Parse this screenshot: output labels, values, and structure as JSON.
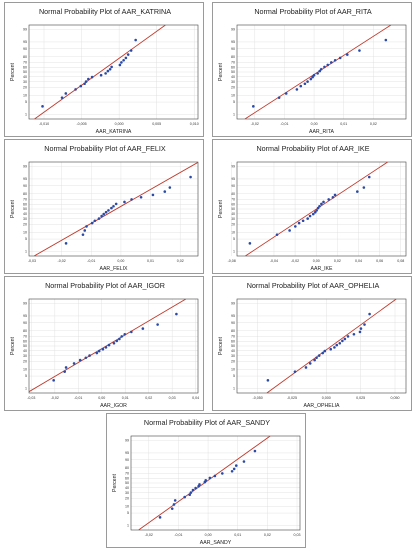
{
  "chart_data": [
    {
      "type": "scatter",
      "title": "Normal Probability Plot of AAR_KATRINA",
      "xlabel": "AAR_KATRINA",
      "ylabel": "Percent",
      "xlim": [
        -0.012,
        0.0105
      ],
      "x_ticks": [
        "-0,010",
        "-0,005",
        "0,000",
        "0,005",
        "0,010"
      ],
      "x": [
        -0.0102,
        -0.0076,
        -0.0071,
        -0.0058,
        -0.0051,
        -0.0046,
        -0.0044,
        -0.0041,
        -0.0036,
        -0.0024,
        -0.0018,
        -0.0015,
        -0.0012,
        -0.001,
        0.0001,
        0.0003,
        0.0006,
        0.0009,
        0.0012,
        0.0016,
        0.0022
      ],
      "y": [
        3,
        8,
        12,
        17,
        22,
        26,
        30,
        35,
        39,
        43,
        47,
        52,
        56,
        61,
        65,
        70,
        74,
        78,
        83,
        88,
        96
      ]
    },
    {
      "type": "scatter",
      "title": "Normal Probability Plot of AAR_RITA",
      "xlabel": "AAR_RITA",
      "ylabel": "Percent",
      "xlim": [
        -0.026,
        0.031
      ],
      "x_ticks": [
        "-0,02",
        "-0,01",
        "0,00",
        "0,01",
        "0,02"
      ],
      "x": [
        -0.0205,
        -0.0118,
        -0.0094,
        -0.0058,
        -0.0045,
        -0.0031,
        -0.0022,
        -0.0011,
        -0.0005,
        0.0,
        0.0012,
        0.0019,
        0.0024,
        0.0035,
        0.0046,
        0.0058,
        0.0071,
        0.0088,
        0.0112,
        0.0153,
        0.0242
      ],
      "y": [
        3,
        8,
        12,
        17,
        22,
        26,
        30,
        35,
        39,
        43,
        47,
        52,
        56,
        61,
        65,
        70,
        74,
        78,
        83,
        88,
        96
      ]
    },
    {
      "type": "scatter",
      "title": "Normal Probability Plot of AAR_FELIX",
      "xlabel": "AAR_FELIX",
      "ylabel": "Percent",
      "xlim": [
        -0.031,
        0.026
      ],
      "x_ticks": [
        "-0,03",
        "-0,02",
        "-0,01",
        "0,00",
        "0,01",
        "0,02"
      ],
      "x": [
        -0.0185,
        -0.0128,
        -0.0122,
        -0.0116,
        -0.0097,
        -0.0088,
        -0.0074,
        -0.0065,
        -0.0058,
        -0.005,
        -0.0042,
        -0.0032,
        -0.0025,
        -0.0016,
        0.0012,
        0.0036,
        0.0068,
        0.0108,
        0.0148,
        0.0165,
        0.0235
      ],
      "y": [
        3,
        8,
        12,
        17,
        22,
        26,
        30,
        35,
        39,
        43,
        47,
        52,
        56,
        61,
        65,
        70,
        74,
        78,
        83,
        88,
        96
      ]
    },
    {
      "type": "scatter",
      "title": "Normal Probability Plot of AAR_IKE",
      "xlabel": "AAR_IKE",
      "ylabel": "Percent",
      "xlim": [
        -0.075,
        0.085
      ],
      "x_ticks": [
        "-0,08",
        "-0,04",
        "-0,02",
        "0,00",
        "0,02",
        "0,04",
        "0,06",
        "0,08"
      ],
      "x": [
        -0.0628,
        -0.0371,
        -0.0252,
        -0.0198,
        -0.0162,
        -0.0124,
        -0.0081,
        -0.0058,
        -0.0028,
        -0.0009,
        0.0004,
        0.0018,
        0.0031,
        0.0049,
        0.0069,
        0.0118,
        0.0158,
        0.0178,
        0.0389,
        0.0451,
        0.0502
      ],
      "y": [
        3,
        8,
        12,
        17,
        22,
        26,
        30,
        35,
        39,
        43,
        47,
        52,
        56,
        61,
        65,
        70,
        74,
        78,
        83,
        88,
        96
      ]
    },
    {
      "type": "scatter",
      "title": "Normal Probability Plot of AAR_IGOR",
      "xlabel": "AAR_IGOR",
      "ylabel": "Percent",
      "xlim": [
        -0.031,
        0.041
      ],
      "x_ticks": [
        "-0,03",
        "-0,02",
        "-0,01",
        "0,00",
        "0,01",
        "0,02",
        "0,03",
        "0,04"
      ],
      "x": [
        -0.0205,
        -0.0158,
        -0.0152,
        -0.0118,
        -0.0092,
        -0.0068,
        -0.0052,
        -0.0021,
        -0.0011,
        0.0005,
        0.0018,
        0.0031,
        0.0052,
        0.0064,
        0.0075,
        0.0085,
        0.0098,
        0.0126,
        0.0175,
        0.0238,
        0.0318
      ],
      "y": [
        3,
        8,
        12,
        17,
        22,
        26,
        30,
        35,
        39,
        43,
        47,
        52,
        56,
        61,
        65,
        70,
        74,
        78,
        83,
        88,
        96
      ]
    },
    {
      "type": "scatter",
      "title": "Normal Probability Plot of AAR_OPHELIA",
      "xlabel": "AAR_OPHELIA",
      "ylabel": "Percent",
      "xlim": [
        -0.065,
        0.058
      ],
      "x_ticks": [
        "-0,050",
        "-0,025",
        "0,000",
        "0,025",
        "0,050"
      ],
      "x": [
        -0.0425,
        -0.0228,
        -0.0148,
        -0.0117,
        -0.0085,
        -0.0071,
        -0.0052,
        -0.0026,
        -0.0011,
        0.0032,
        0.0059,
        0.0076,
        0.0098,
        0.0117,
        0.0135,
        0.0158,
        0.0201,
        0.0245,
        0.0252,
        0.0278,
        0.0315
      ],
      "y": [
        3,
        8,
        12,
        17,
        22,
        26,
        30,
        35,
        39,
        43,
        47,
        52,
        56,
        61,
        65,
        70,
        74,
        78,
        83,
        88,
        96
      ]
    },
    {
      "type": "scatter",
      "title": "Normal Probability Plot of AAR_SANDY",
      "xlabel": "AAR_SANDY",
      "ylabel": "Percent",
      "xlim": [
        -0.026,
        0.031
      ],
      "x_ticks": [
        "-0,02",
        "-0,01",
        "0,00",
        "0,01",
        "0,02",
        "0,03"
      ],
      "x": [
        -0.0162,
        -0.0121,
        -0.0115,
        -0.0111,
        -0.0079,
        -0.0062,
        -0.0058,
        -0.0051,
        -0.0042,
        -0.0032,
        -0.0029,
        -0.0011,
        -0.0008,
        0.0006,
        0.0023,
        0.0048,
        0.0081,
        0.0088,
        0.0095,
        0.0121,
        0.0158
      ],
      "y": [
        3,
        8,
        12,
        17,
        22,
        26,
        30,
        35,
        39,
        43,
        47,
        52,
        56,
        61,
        65,
        70,
        74,
        78,
        83,
        88,
        96
      ]
    }
  ],
  "y_ticks": [
    "1",
    "5",
    "10",
    "20",
    "30",
    "40",
    "50",
    "60",
    "70",
    "80",
    "90",
    "95",
    "99"
  ],
  "y_tick_values": [
    1,
    5,
    10,
    20,
    30,
    40,
    50,
    60,
    70,
    80,
    90,
    95,
    99
  ],
  "colors": {
    "points": "#2b4aa7",
    "fit_line": "#c0392b",
    "grid": "#dcdcdc",
    "frame": "#444444"
  }
}
